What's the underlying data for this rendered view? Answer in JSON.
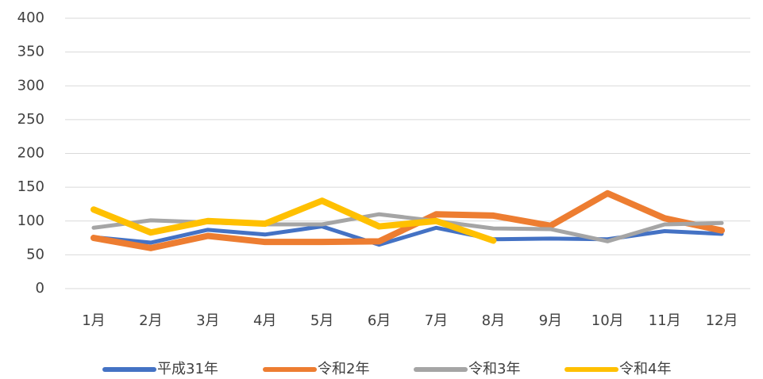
{
  "chart_data": {
    "type": "line",
    "categories": [
      "1月",
      "2月",
      "3月",
      "4月",
      "5月",
      "6月",
      "7月",
      "8月",
      "9月",
      "10月",
      "11月",
      "12月"
    ],
    "series": [
      {
        "name": "平成31年",
        "color": "#4472c4",
        "values": [
          76,
          68,
          87,
          80,
          92,
          65,
          90,
          73,
          74,
          73,
          85,
          81
        ]
      },
      {
        "name": "令和2年",
        "color": "#ed7d31",
        "values": [
          75,
          60,
          78,
          69,
          69,
          70,
          110,
          108,
          93,
          141,
          104,
          86
        ]
      },
      {
        "name": "令和3年",
        "color": "#a5a5a5",
        "values": [
          90,
          101,
          98,
          95,
          95,
          110,
          100,
          89,
          88,
          70,
          95,
          97
        ]
      },
      {
        "name": "令和4年",
        "color": "#ffc000",
        "values": [
          117,
          83,
          100,
          96,
          130,
          92,
          100,
          71,
          null,
          null,
          null,
          null
        ]
      }
    ],
    "ylim": [
      0,
      400
    ],
    "yticks": [
      0,
      50,
      100,
      150,
      200,
      250,
      300,
      350,
      400
    ],
    "grid": true,
    "legend": "bottom"
  }
}
